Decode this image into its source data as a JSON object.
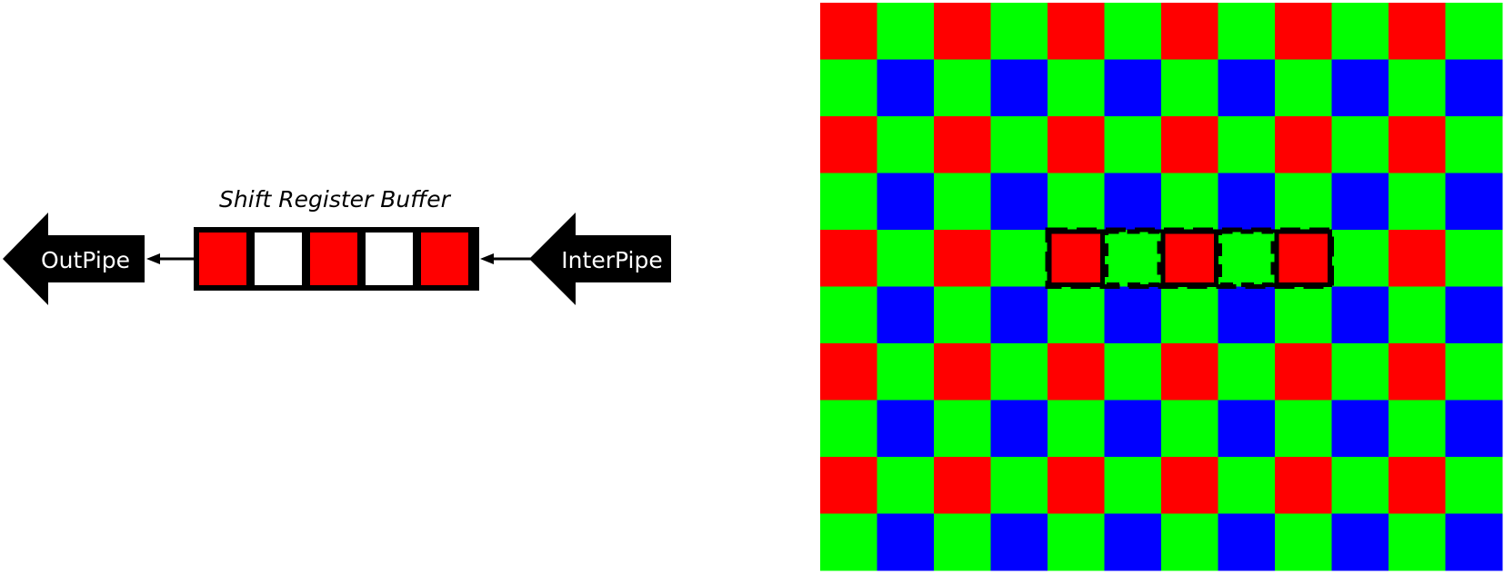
{
  "diagram": {
    "title": "Shift Register Buffer",
    "out_pipe_label": "OutPipe",
    "inter_pipe_label": "InterPipe",
    "buffer_cells": [
      "red",
      "white",
      "red",
      "white",
      "red"
    ]
  },
  "bayer_grid": {
    "rows": 10,
    "cols": 12,
    "pattern": [
      [
        "red",
        "green"
      ],
      [
        "green",
        "blue"
      ]
    ],
    "highlight": {
      "row": 4,
      "col_start": 4,
      "col_end": 8,
      "dashed_cells": [
        1,
        3
      ]
    }
  },
  "colors": {
    "red": "#ff0000",
    "green": "#00ff00",
    "blue": "#0000ff",
    "white": "#ffffff",
    "black": "#000000"
  }
}
